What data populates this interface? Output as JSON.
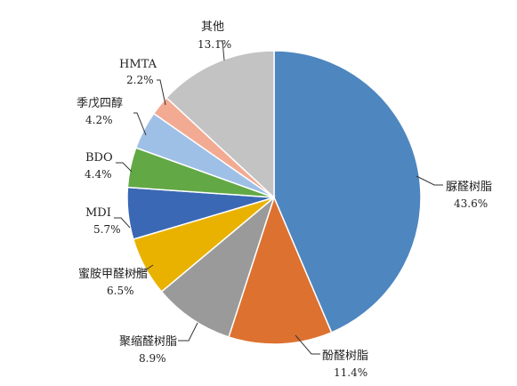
{
  "chart_data": {
    "type": "pie",
    "title": "",
    "start_angle_deg": 0,
    "direction": "clockwise",
    "slices": [
      {
        "name": "脲醛树脂",
        "value": 43.6,
        "label": "43.6%",
        "color": "#4e86bf"
      },
      {
        "name": "酚醛树脂",
        "value": 11.4,
        "label": "11.4%",
        "color": "#dd7130"
      },
      {
        "name": "聚缩醛树脂",
        "value": 8.9,
        "label": "8.9%",
        "color": "#9a9a9a"
      },
      {
        "name": "蜜胺甲醛树脂",
        "value": 6.5,
        "label": "6.5%",
        "color": "#eab200"
      },
      {
        "name": "MDI",
        "value": 5.7,
        "label": "5.7%",
        "color": "#3b68b4"
      },
      {
        "name": "BDO",
        "value": 4.4,
        "label": "4.4%",
        "color": "#62a845"
      },
      {
        "name": "季戊四醇",
        "value": 4.2,
        "label": "4.2%",
        "color": "#9fc0e6"
      },
      {
        "name": "HMTA",
        "value": 2.2,
        "label": "2.2%",
        "color": "#f2ab92"
      },
      {
        "name": "其他",
        "value": 13.1,
        "label": "13.1%",
        "color": "#c3c3c3"
      }
    ]
  }
}
